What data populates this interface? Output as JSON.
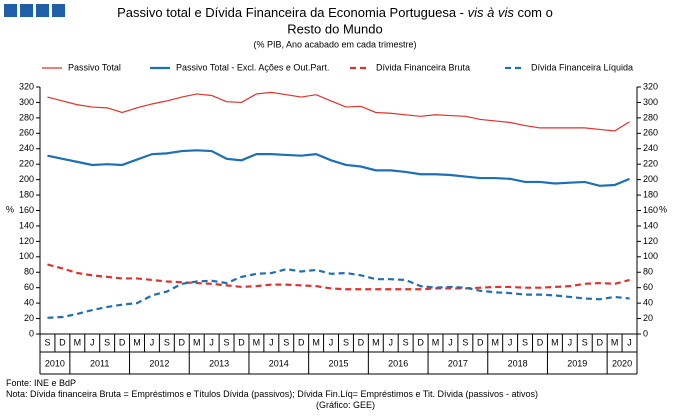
{
  "chart_data": {
    "type": "line",
    "title_lines": [
      [
        "Passivo total e Dívida Financeira da Economia Portuguesa - ",
        "vis à vis",
        " com o"
      ],
      [
        "Resto do Mundo"
      ]
    ],
    "subtitle": "(% PIB, Ano acabado em cada trimestre)",
    "y_label": "%",
    "y2_label": "%",
    "categories": [
      "S",
      "D",
      "M",
      "J",
      "S",
      "D",
      "M",
      "J",
      "S",
      "D",
      "M",
      "J",
      "S",
      "D",
      "M",
      "J",
      "S",
      "D",
      "M",
      "J",
      "S",
      "D",
      "M",
      "J",
      "S",
      "D",
      "M",
      "J",
      "S",
      "D",
      "M",
      "J",
      "S",
      "D",
      "M",
      "J",
      "S",
      "D",
      "M",
      "J"
    ],
    "x_groups": [
      {
        "label": "2010",
        "categories": 2
      },
      {
        "label": "2011",
        "categories": 4
      },
      {
        "label": "2012",
        "categories": 4
      },
      {
        "label": "2013",
        "categories": 4
      },
      {
        "label": "2014",
        "categories": 4
      },
      {
        "label": "2015",
        "categories": 4
      },
      {
        "label": "2016",
        "categories": 4
      },
      {
        "label": "2017",
        "categories": 4
      },
      {
        "label": "2018",
        "categories": 4
      },
      {
        "label": "2019",
        "categories": 4
      },
      {
        "label": "2020",
        "categories": 2
      }
    ],
    "series": [
      {
        "name": "Passivo Total",
        "color": "#e0322c",
        "width": 1.2,
        "dash": false,
        "values": [
          307,
          302,
          297,
          294,
          293,
          287,
          293,
          298,
          302,
          307,
          311,
          309,
          301,
          300,
          311,
          313,
          310,
          307,
          310,
          302,
          294,
          295,
          287,
          286,
          284,
          282,
          284,
          283,
          282,
          278,
          276,
          274,
          270,
          267,
          267,
          267,
          267,
          265,
          263,
          275
        ]
      },
      {
        "name": "Passivo Total - Excl. Ações e Out.Part.",
        "color": "#1f6fb4",
        "width": 2.2,
        "dash": false,
        "values": [
          231,
          227,
          223,
          219,
          220,
          219,
          226,
          233,
          234,
          237,
          238,
          237,
          227,
          225,
          233,
          233,
          232,
          231,
          233,
          225,
          219,
          217,
          212,
          212,
          210,
          207,
          207,
          206,
          204,
          202,
          202,
          201,
          197,
          197,
          195,
          196,
          197,
          192,
          193,
          201
        ]
      },
      {
        "name": "Dívida Financeira Bruta",
        "color": "#e0322c",
        "width": 2.2,
        "dash": true,
        "values": [
          90,
          85,
          79,
          76,
          74,
          72,
          72,
          70,
          68,
          67,
          66,
          65,
          63,
          61,
          62,
          64,
          64,
          63,
          62,
          59,
          58,
          58,
          58,
          58,
          58,
          58,
          59,
          59,
          59,
          60,
          61,
          61,
          60,
          60,
          61,
          62,
          65,
          66,
          65,
          70
        ]
      },
      {
        "name": "Dívida Financeira Líquida",
        "color": "#1f6fb4",
        "width": 2.2,
        "dash": true,
        "values": [
          21,
          22,
          26,
          31,
          35,
          38,
          40,
          50,
          55,
          65,
          68,
          69,
          66,
          74,
          78,
          79,
          84,
          81,
          83,
          78,
          79,
          76,
          71,
          71,
          70,
          62,
          60,
          61,
          60,
          56,
          54,
          53,
          51,
          51,
          50,
          48,
          46,
          45,
          48,
          46
        ]
      }
    ],
    "ylim": [
      0,
      320
    ],
    "yticks": [
      0,
      20,
      40,
      60,
      80,
      100,
      120,
      140,
      160,
      180,
      200,
      220,
      240,
      260,
      280,
      300,
      320
    ],
    "y2lim": [
      0,
      320
    ],
    "y2ticks": [
      0,
      20,
      40,
      60,
      80,
      100,
      120,
      140,
      160,
      180,
      200,
      220,
      240,
      260,
      280,
      300,
      320
    ],
    "grid": false,
    "legend": "top",
    "notes": [
      "Fonte: INE e BdP",
      "Nota: Dívida financeira Bruta = Empréstimos e Títulos Dívida (passivos); Dívida Fin.Líq= Empréstimos e Tit. Dívida (passivos - ativos)",
      "(Gráfico: GEE)"
    ]
  }
}
